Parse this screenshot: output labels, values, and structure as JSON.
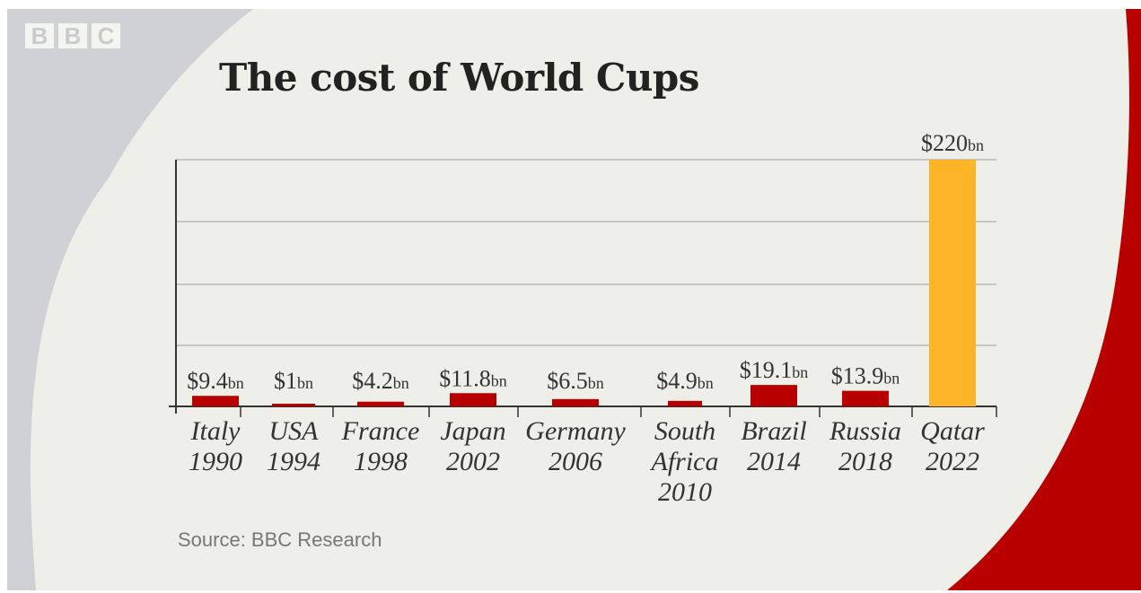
{
  "brand": {
    "letters": [
      "B",
      "B",
      "C"
    ],
    "bg_grey": "#cfd1d4",
    "panel": "#efefea",
    "red": "#b80000"
  },
  "source": "Source: BBC Research",
  "chart_data": {
    "type": "bar",
    "title": "The cost of World Cups",
    "categories": [
      [
        "Italy",
        "1990"
      ],
      [
        "USA",
        "1994"
      ],
      [
        "France",
        "1998"
      ],
      [
        "Japan",
        "2002"
      ],
      [
        "Germany",
        "2006"
      ],
      [
        "South",
        "Africa",
        "2010"
      ],
      [
        "Brazil",
        "2014"
      ],
      [
        "Russia",
        "2018"
      ],
      [
        "Qatar",
        "2022"
      ]
    ],
    "values": [
      9.4,
      1,
      4.2,
      11.8,
      6.5,
      4.9,
      19.1,
      13.9,
      220
    ],
    "value_labels": [
      "$9.4",
      "$1",
      "$4.2",
      "$11.8",
      "$6.5",
      "$4.9",
      "$19.1",
      "$13.9",
      "$220"
    ],
    "value_unit": "bn",
    "colors": [
      "#b80000",
      "#b80000",
      "#b80000",
      "#b80000",
      "#b80000",
      "#b80000",
      "#b80000",
      "#b80000",
      "#fbb527"
    ],
    "xlabel": "",
    "ylabel": "",
    "ylim": [
      0,
      220
    ],
    "grid": true,
    "legend": "none"
  }
}
